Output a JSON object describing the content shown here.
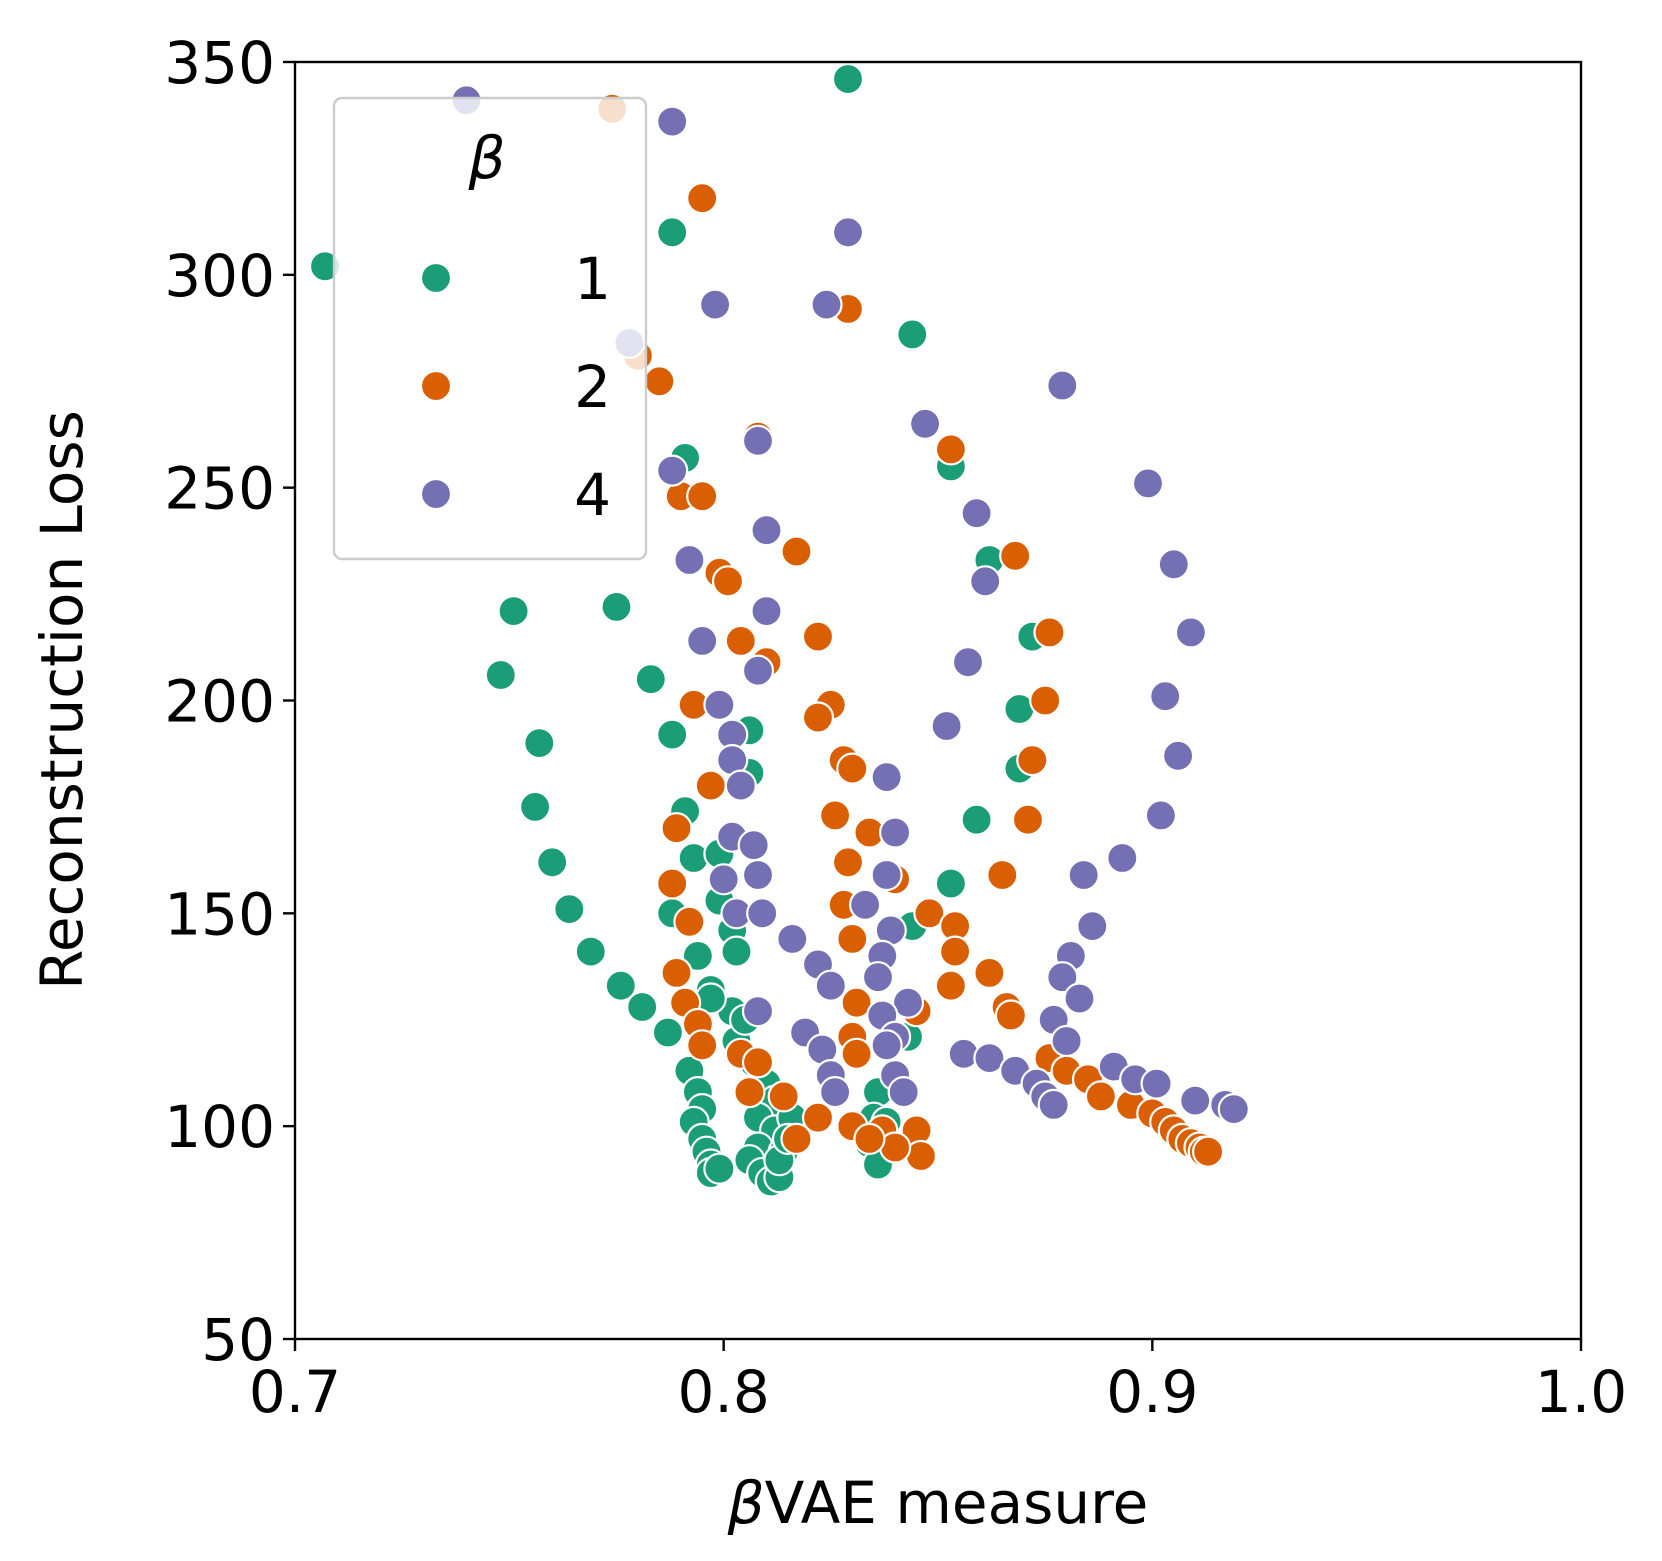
{
  "chart_data": {
    "type": "scatter",
    "xlabel_prefix": "β",
    "xlabel_suffix": "VAE measure",
    "ylabel": "Reconstruction Loss",
    "xlim": [
      0.7,
      1.0
    ],
    "ylim": [
      50,
      350
    ],
    "xticks": [
      0.7,
      0.8,
      0.9,
      1.0
    ],
    "xtick_labels": [
      "0.7",
      "0.8",
      "0.9",
      "1.0"
    ],
    "yticks": [
      50,
      100,
      150,
      200,
      250,
      300,
      350
    ],
    "ytick_labels": [
      "50",
      "100",
      "150",
      "200",
      "250",
      "300",
      "350"
    ],
    "grid": false,
    "legend": {
      "title": "β",
      "placement": "upper-left"
    },
    "series": [
      {
        "name": "1",
        "color": "#1b9e77",
        "points": [
          [
            0.707,
            302
          ],
          [
            0.748,
            206
          ],
          [
            0.751,
            221
          ],
          [
            0.757,
            190
          ],
          [
            0.756,
            175
          ],
          [
            0.76,
            162
          ],
          [
            0.764,
            151
          ],
          [
            0.769,
            141
          ],
          [
            0.776,
            133
          ],
          [
            0.781,
            128
          ],
          [
            0.787,
            122
          ],
          [
            0.792,
            113
          ],
          [
            0.794,
            108
          ],
          [
            0.795,
            104
          ],
          [
            0.793,
            101
          ],
          [
            0.795,
            97
          ],
          [
            0.796,
            94
          ],
          [
            0.797,
            91
          ],
          [
            0.797,
            89
          ],
          [
            0.799,
            90
          ],
          [
            0.829,
            346
          ],
          [
            0.788,
            310
          ],
          [
            0.844,
            286
          ],
          [
            0.791,
            257
          ],
          [
            0.853,
            255
          ],
          [
            0.862,
            233
          ],
          [
            0.872,
            215
          ],
          [
            0.869,
            198
          ],
          [
            0.869,
            184
          ],
          [
            0.859,
            172
          ],
          [
            0.853,
            157
          ],
          [
            0.844,
            147
          ],
          [
            0.843,
            121
          ],
          [
            0.775,
            222
          ],
          [
            0.783,
            205
          ],
          [
            0.788,
            192
          ],
          [
            0.806,
            193
          ],
          [
            0.806,
            183
          ],
          [
            0.791,
            174
          ],
          [
            0.793,
            163
          ],
          [
            0.788,
            150
          ],
          [
            0.794,
            140
          ],
          [
            0.797,
            132
          ],
          [
            0.802,
            127
          ],
          [
            0.803,
            120
          ],
          [
            0.807,
            115
          ],
          [
            0.81,
            110
          ],
          [
            0.812,
            106
          ],
          [
            0.808,
            102
          ],
          [
            0.812,
            99
          ],
          [
            0.808,
            95
          ],
          [
            0.806,
            92
          ],
          [
            0.809,
            89
          ],
          [
            0.811,
            87
          ],
          [
            0.813,
            88
          ],
          [
            0.816,
            102
          ],
          [
            0.814,
            94
          ],
          [
            0.836,
            108
          ],
          [
            0.835,
            102
          ],
          [
            0.834,
            96
          ],
          [
            0.836,
            91
          ],
          [
            0.838,
            101
          ],
          [
            0.802,
            146
          ],
          [
            0.803,
            141
          ],
          [
            0.799,
            153
          ],
          [
            0.799,
            164
          ],
          [
            0.797,
            130
          ],
          [
            0.805,
            125
          ],
          [
            0.813,
            92
          ],
          [
            0.815,
            97
          ]
        ]
      },
      {
        "name": "2",
        "color": "#d95f02",
        "points": [
          [
            0.774,
            339
          ],
          [
            0.795,
            318
          ],
          [
            0.829,
            292
          ],
          [
            0.78,
            281
          ],
          [
            0.785,
            275
          ],
          [
            0.808,
            262
          ],
          [
            0.853,
            259
          ],
          [
            0.79,
            248
          ],
          [
            0.795,
            248
          ],
          [
            0.868,
            234
          ],
          [
            0.817,
            235
          ],
          [
            0.799,
            230
          ],
          [
            0.801,
            228
          ],
          [
            0.876,
            216
          ],
          [
            0.804,
            214
          ],
          [
            0.81,
            209
          ],
          [
            0.822,
            215
          ],
          [
            0.875,
            200
          ],
          [
            0.793,
            199
          ],
          [
            0.825,
            199
          ],
          [
            0.822,
            196
          ],
          [
            0.828,
            186
          ],
          [
            0.83,
            184
          ],
          [
            0.872,
            186
          ],
          [
            0.871,
            172
          ],
          [
            0.797,
            180
          ],
          [
            0.826,
            173
          ],
          [
            0.789,
            170
          ],
          [
            0.834,
            169
          ],
          [
            0.829,
            162
          ],
          [
            0.84,
            158
          ],
          [
            0.865,
            159
          ],
          [
            0.788,
            157
          ],
          [
            0.828,
            152
          ],
          [
            0.848,
            150
          ],
          [
            0.854,
            147
          ],
          [
            0.792,
            148
          ],
          [
            0.854,
            141
          ],
          [
            0.83,
            144
          ],
          [
            0.862,
            136
          ],
          [
            0.789,
            136
          ],
          [
            0.791,
            129
          ],
          [
            0.853,
            133
          ],
          [
            0.831,
            129
          ],
          [
            0.866,
            128
          ],
          [
            0.845,
            127
          ],
          [
            0.867,
            126
          ],
          [
            0.794,
            124
          ],
          [
            0.795,
            119
          ],
          [
            0.83,
            121
          ],
          [
            0.831,
            117
          ],
          [
            0.876,
            116
          ],
          [
            0.88,
            113
          ],
          [
            0.885,
            111
          ],
          [
            0.888,
            107
          ],
          [
            0.895,
            105
          ],
          [
            0.9,
            103
          ],
          [
            0.903,
            101
          ],
          [
            0.905,
            99
          ],
          [
            0.907,
            97
          ],
          [
            0.909,
            96
          ],
          [
            0.911,
            95
          ],
          [
            0.912,
            94
          ],
          [
            0.913,
            94
          ],
          [
            0.806,
            108
          ],
          [
            0.814,
            107
          ],
          [
            0.822,
            102
          ],
          [
            0.817,
            97
          ],
          [
            0.83,
            100
          ],
          [
            0.837,
            99
          ],
          [
            0.845,
            99
          ],
          [
            0.846,
            93
          ],
          [
            0.84,
            95
          ],
          [
            0.834,
            97
          ],
          [
            0.804,
            117
          ],
          [
            0.808,
            115
          ]
        ]
      },
      {
        "name": "4",
        "color": "#7570b3",
        "points": [
          [
            0.74,
            341
          ],
          [
            0.788,
            336
          ],
          [
            0.829,
            310
          ],
          [
            0.798,
            293
          ],
          [
            0.824,
            293
          ],
          [
            0.778,
            284
          ],
          [
            0.879,
            274
          ],
          [
            0.847,
            265
          ],
          [
            0.808,
            261
          ],
          [
            0.788,
            254
          ],
          [
            0.899,
            251
          ],
          [
            0.859,
            244
          ],
          [
            0.81,
            240
          ],
          [
            0.792,
            233
          ],
          [
            0.905,
            232
          ],
          [
            0.861,
            228
          ],
          [
            0.81,
            221
          ],
          [
            0.909,
            216
          ],
          [
            0.795,
            214
          ],
          [
            0.808,
            207
          ],
          [
            0.857,
            209
          ],
          [
            0.903,
            201
          ],
          [
            0.799,
            199
          ],
          [
            0.852,
            194
          ],
          [
            0.802,
            192
          ],
          [
            0.802,
            186
          ],
          [
            0.906,
            187
          ],
          [
            0.838,
            182
          ],
          [
            0.804,
            180
          ],
          [
            0.902,
            173
          ],
          [
            0.84,
            169
          ],
          [
            0.802,
            168
          ],
          [
            0.807,
            166
          ],
          [
            0.893,
            163
          ],
          [
            0.808,
            159
          ],
          [
            0.838,
            159
          ],
          [
            0.884,
            159
          ],
          [
            0.8,
            158
          ],
          [
            0.803,
            150
          ],
          [
            0.809,
            150
          ],
          [
            0.886,
            147
          ],
          [
            0.833,
            152
          ],
          [
            0.839,
            146
          ],
          [
            0.837,
            140
          ],
          [
            0.816,
            144
          ],
          [
            0.822,
            138
          ],
          [
            0.881,
            140
          ],
          [
            0.836,
            135
          ],
          [
            0.825,
            133
          ],
          [
            0.879,
            135
          ],
          [
            0.883,
            130
          ],
          [
            0.843,
            129
          ],
          [
            0.837,
            126
          ],
          [
            0.808,
            127
          ],
          [
            0.877,
            125
          ],
          [
            0.819,
            122
          ],
          [
            0.84,
            121
          ],
          [
            0.838,
            119
          ],
          [
            0.823,
            118
          ],
          [
            0.856,
            117
          ],
          [
            0.862,
            116
          ],
          [
            0.868,
            113
          ],
          [
            0.873,
            110
          ],
          [
            0.875,
            107
          ],
          [
            0.877,
            105
          ],
          [
            0.88,
            120
          ],
          [
            0.891,
            114
          ],
          [
            0.896,
            111
          ],
          [
            0.901,
            110
          ],
          [
            0.91,
            106
          ],
          [
            0.917,
            105
          ],
          [
            0.919,
            104
          ],
          [
            0.825,
            112
          ],
          [
            0.826,
            108
          ],
          [
            0.84,
            112
          ],
          [
            0.842,
            108
          ]
        ]
      }
    ]
  }
}
